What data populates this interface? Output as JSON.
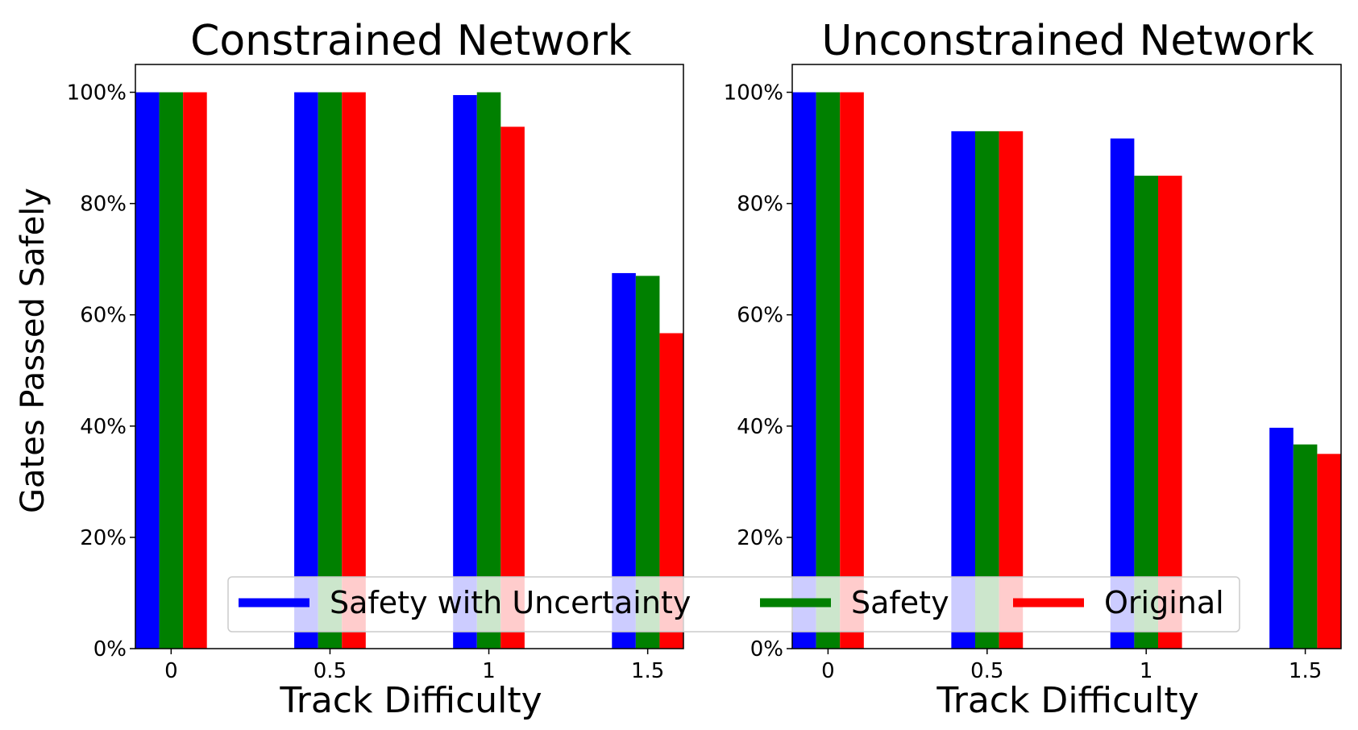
{
  "chart_data": [
    {
      "type": "bar",
      "title": "Constrained Network",
      "xlabel": "Track Difficulty",
      "ylabel": "Gates Passed Safely",
      "categories": [
        "0",
        "0.5",
        "1",
        "1.5"
      ],
      "ylim": [
        0,
        1.05
      ],
      "yticks": [
        "0%",
        "20%",
        "40%",
        "60%",
        "80%",
        "100%"
      ],
      "series": [
        {
          "name": "Safety with Uncertainty",
          "color": "#0000ff",
          "values": [
            1.0,
            1.0,
            0.995,
            0.675
          ]
        },
        {
          "name": "Safety",
          "color": "#008000",
          "values": [
            1.0,
            1.0,
            1.0,
            0.67
          ]
        },
        {
          "name": "Original",
          "color": "#ff0000",
          "values": [
            1.0,
            1.0,
            0.938,
            0.567
          ]
        }
      ]
    },
    {
      "type": "bar",
      "title": "Unconstrained Network",
      "xlabel": "Track Difficulty",
      "ylabel": "",
      "categories": [
        "0",
        "0.5",
        "1",
        "1.5"
      ],
      "ylim": [
        0,
        1.05
      ],
      "yticks": [
        "0%",
        "20%",
        "40%",
        "60%",
        "80%",
        "100%"
      ],
      "series": [
        {
          "name": "Safety with Uncertainty",
          "color": "#0000ff",
          "values": [
            1.0,
            0.93,
            0.917,
            0.397
          ]
        },
        {
          "name": "Safety",
          "color": "#008000",
          "values": [
            1.0,
            0.93,
            0.85,
            0.367
          ]
        },
        {
          "name": "Original",
          "color": "#ff0000",
          "values": [
            1.0,
            0.93,
            0.85,
            0.35
          ]
        }
      ]
    }
  ],
  "legend": {
    "location": "bottom-center",
    "items": [
      {
        "label": "Safety with Uncertainty",
        "color": "#0000ff"
      },
      {
        "label": "Safety",
        "color": "#008000"
      },
      {
        "label": "Original",
        "color": "#ff0000"
      }
    ]
  }
}
